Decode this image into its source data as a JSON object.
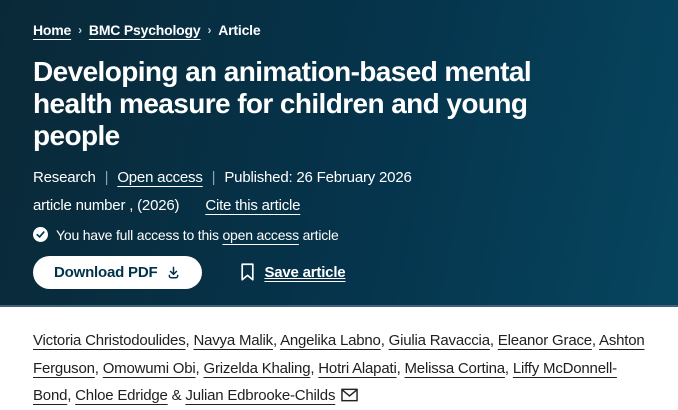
{
  "breadcrumb": {
    "separator": "›",
    "items": [
      {
        "label": "Home",
        "link": true
      },
      {
        "label": "BMC Psychology",
        "link": true
      },
      {
        "label": "Article",
        "link": false
      }
    ]
  },
  "article": {
    "title": "Developing an animation-based mental health measure for children and young people",
    "type": "Research",
    "open_access_label": "Open access",
    "published_label": "Published: 26 February 2026",
    "citation_line": "article number , (2026)",
    "cite_link_label": "Cite this article",
    "access_note_prefix": "You have full access to this",
    "access_note_link": "open access",
    "access_note_suffix": "article"
  },
  "actions": {
    "download_label": "Download PDF",
    "save_label": "Save article"
  },
  "authors": {
    "names": [
      "Victoria Christodoulides",
      "Navya Malik",
      "Angelika Labno",
      "Giulia Ravaccia",
      "Eleanor Grace",
      "Ashton Ferguson",
      "Omowumi Obi",
      "Grizelda Khaling",
      "Hotri Alapati",
      "Melissa Cortina",
      "Liffy McDonnell-Bond",
      "Chloe Edridge",
      "Julian Edbrooke-Childs"
    ],
    "last_separator": "&"
  },
  "colors": {
    "hero_gradient_start": "#0a2938",
    "hero_gradient_end": "#07455f",
    "hero_border_bottom": "#42617a",
    "text_on_dark": "#ffffff",
    "button_text": "#01324b",
    "author_text": "#202020"
  }
}
